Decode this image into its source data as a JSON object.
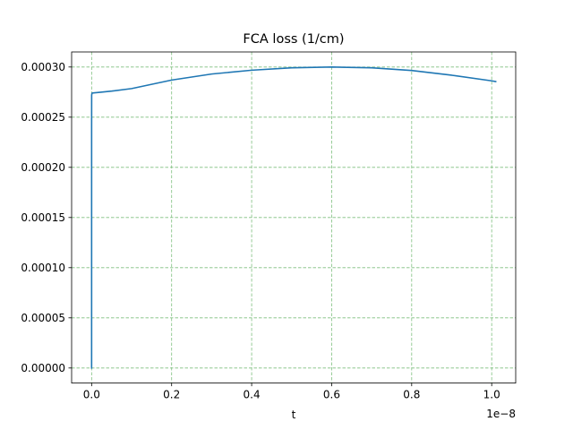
{
  "chart_data": {
    "type": "line",
    "title": "FCA loss (1/cm)",
    "xlabel": "t",
    "ylabel": "",
    "x_offset_label": "1e−8",
    "x_scale": 1e-08,
    "xlim": [
      -5e-10,
      1.06e-08
    ],
    "ylim": [
      -1.5e-05,
      0.000315
    ],
    "x_ticks": [
      0,
      2e-09,
      4e-09,
      6e-09,
      8e-09,
      1e-08
    ],
    "x_tick_labels": [
      "0.0",
      "0.2",
      "0.4",
      "0.6",
      "0.8",
      "1.0"
    ],
    "y_ticks": [
      0,
      5e-05,
      0.0001,
      0.00015,
      0.0002,
      0.00025,
      0.0003
    ],
    "y_tick_labels": [
      "0.00000",
      "0.00005",
      "0.00010",
      "0.00015",
      "0.00020",
      "0.00025",
      "0.00030"
    ],
    "grid": true,
    "grid_style": "dashed",
    "grid_color": "#7fbf7f",
    "line_color": "#1f77b4",
    "series": [
      {
        "x": [
          0,
          1e-13,
          1e-12,
          1e-11,
          5e-11,
          2e-10,
          5e-10,
          1e-09,
          2e-09,
          3e-09,
          4e-09,
          5e-09,
          6e-09,
          7e-09,
          8e-09,
          9e-09,
          1e-08,
          1.01e-08
        ],
        "y": [
          0,
          0.00024,
          0.000272,
          0.000274,
          0.0002742,
          0.0002748,
          0.000276,
          0.0002785,
          0.000287,
          0.000293,
          0.0002968,
          0.0002992,
          0.0003,
          0.0002992,
          0.0002965,
          0.0002918,
          0.0002862,
          0.0002855
        ]
      }
    ]
  }
}
